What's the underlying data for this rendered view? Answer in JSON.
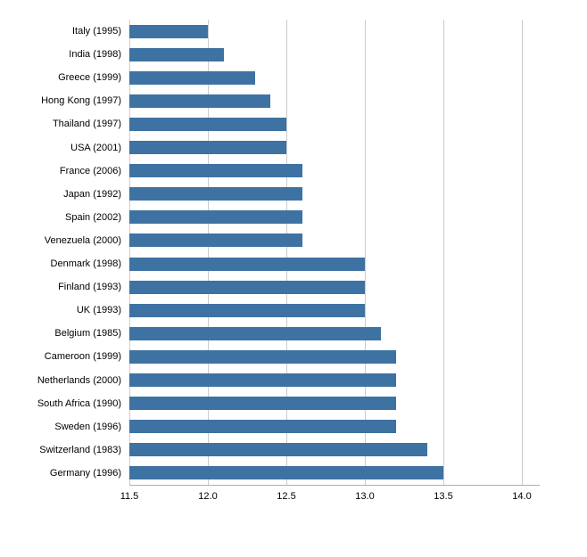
{
  "chart_data": {
    "type": "bar",
    "orientation": "horizontal",
    "title": "",
    "xlabel": "",
    "ylabel": "",
    "categories": [
      "Italy (1995)",
      "India (1998)",
      "Greece (1999)",
      "Hong Kong (1997)",
      "Thailand (1997)",
      "USA (2001)",
      "France (2006)",
      "Japan (1992)",
      "Spain (2002)",
      "Venezuela (2000)",
      "Denmark (1998)",
      "Finland (1993)",
      "UK (1993)",
      "Belgium (1985)",
      "Cameroon (1999)",
      "Netherlands (2000)",
      "South Africa (1990)",
      "Sweden (1996)",
      "Switzerland (1983)",
      "Germany (1996)"
    ],
    "values": [
      12.0,
      12.1,
      12.3,
      12.4,
      12.5,
      12.5,
      12.6,
      12.6,
      12.6,
      12.6,
      13.0,
      13.0,
      13.0,
      13.1,
      13.2,
      13.2,
      13.2,
      13.2,
      13.4,
      13.5
    ],
    "xlim": [
      11.5,
      14.0
    ],
    "xticks": [
      11.5,
      12.0,
      12.5,
      13.0,
      13.5,
      14.0
    ],
    "grid": true,
    "legend": "none",
    "bar_color": "#3e72a3",
    "grid_color": "#cccccc",
    "axis_color": "#b0b0b0"
  }
}
